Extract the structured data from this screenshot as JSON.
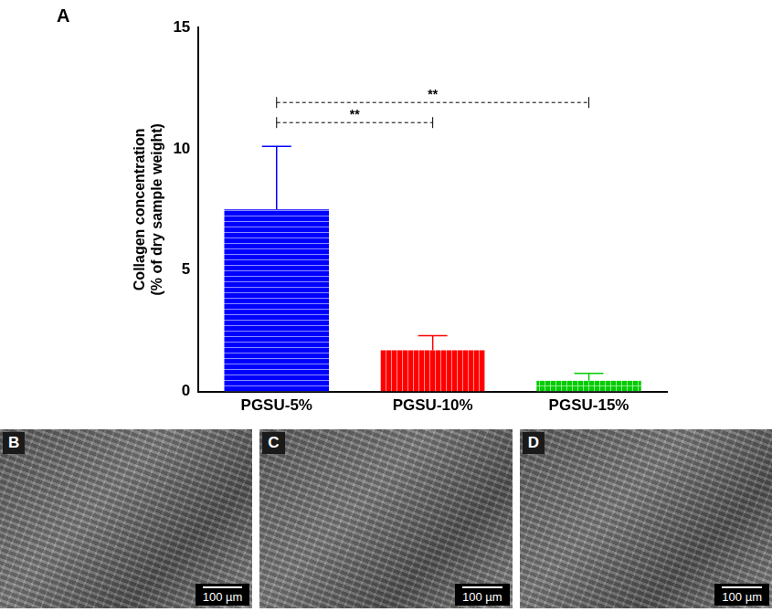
{
  "chart_data": {
    "type": "bar",
    "panel_label": "A",
    "categories": [
      "PGSU-5%",
      "PGSU-10%",
      "PGSU-15%"
    ],
    "values": [
      7.5,
      1.7,
      0.45
    ],
    "errors": [
      2.6,
      0.6,
      0.3
    ],
    "colors": [
      "#0000ff",
      "#ff0000",
      "#00cc00"
    ],
    "y_label": [
      "Collagen concentration",
      "(% of dry sample weight)"
    ],
    "ylim": [
      0,
      15
    ],
    "yticks": [
      0,
      5,
      10,
      15
    ],
    "grid": false,
    "significance": [
      {
        "from": "PGSU-5%",
        "to": "PGSU-10%",
        "label": "**"
      },
      {
        "from": "PGSU-5%",
        "to": "PGSU-15%",
        "label": "**"
      }
    ]
  },
  "images": [
    {
      "label": "B",
      "scale_bar": "100 µm"
    },
    {
      "label": "C",
      "scale_bar": "100 µm"
    },
    {
      "label": "D",
      "scale_bar": "100 µm"
    }
  ]
}
